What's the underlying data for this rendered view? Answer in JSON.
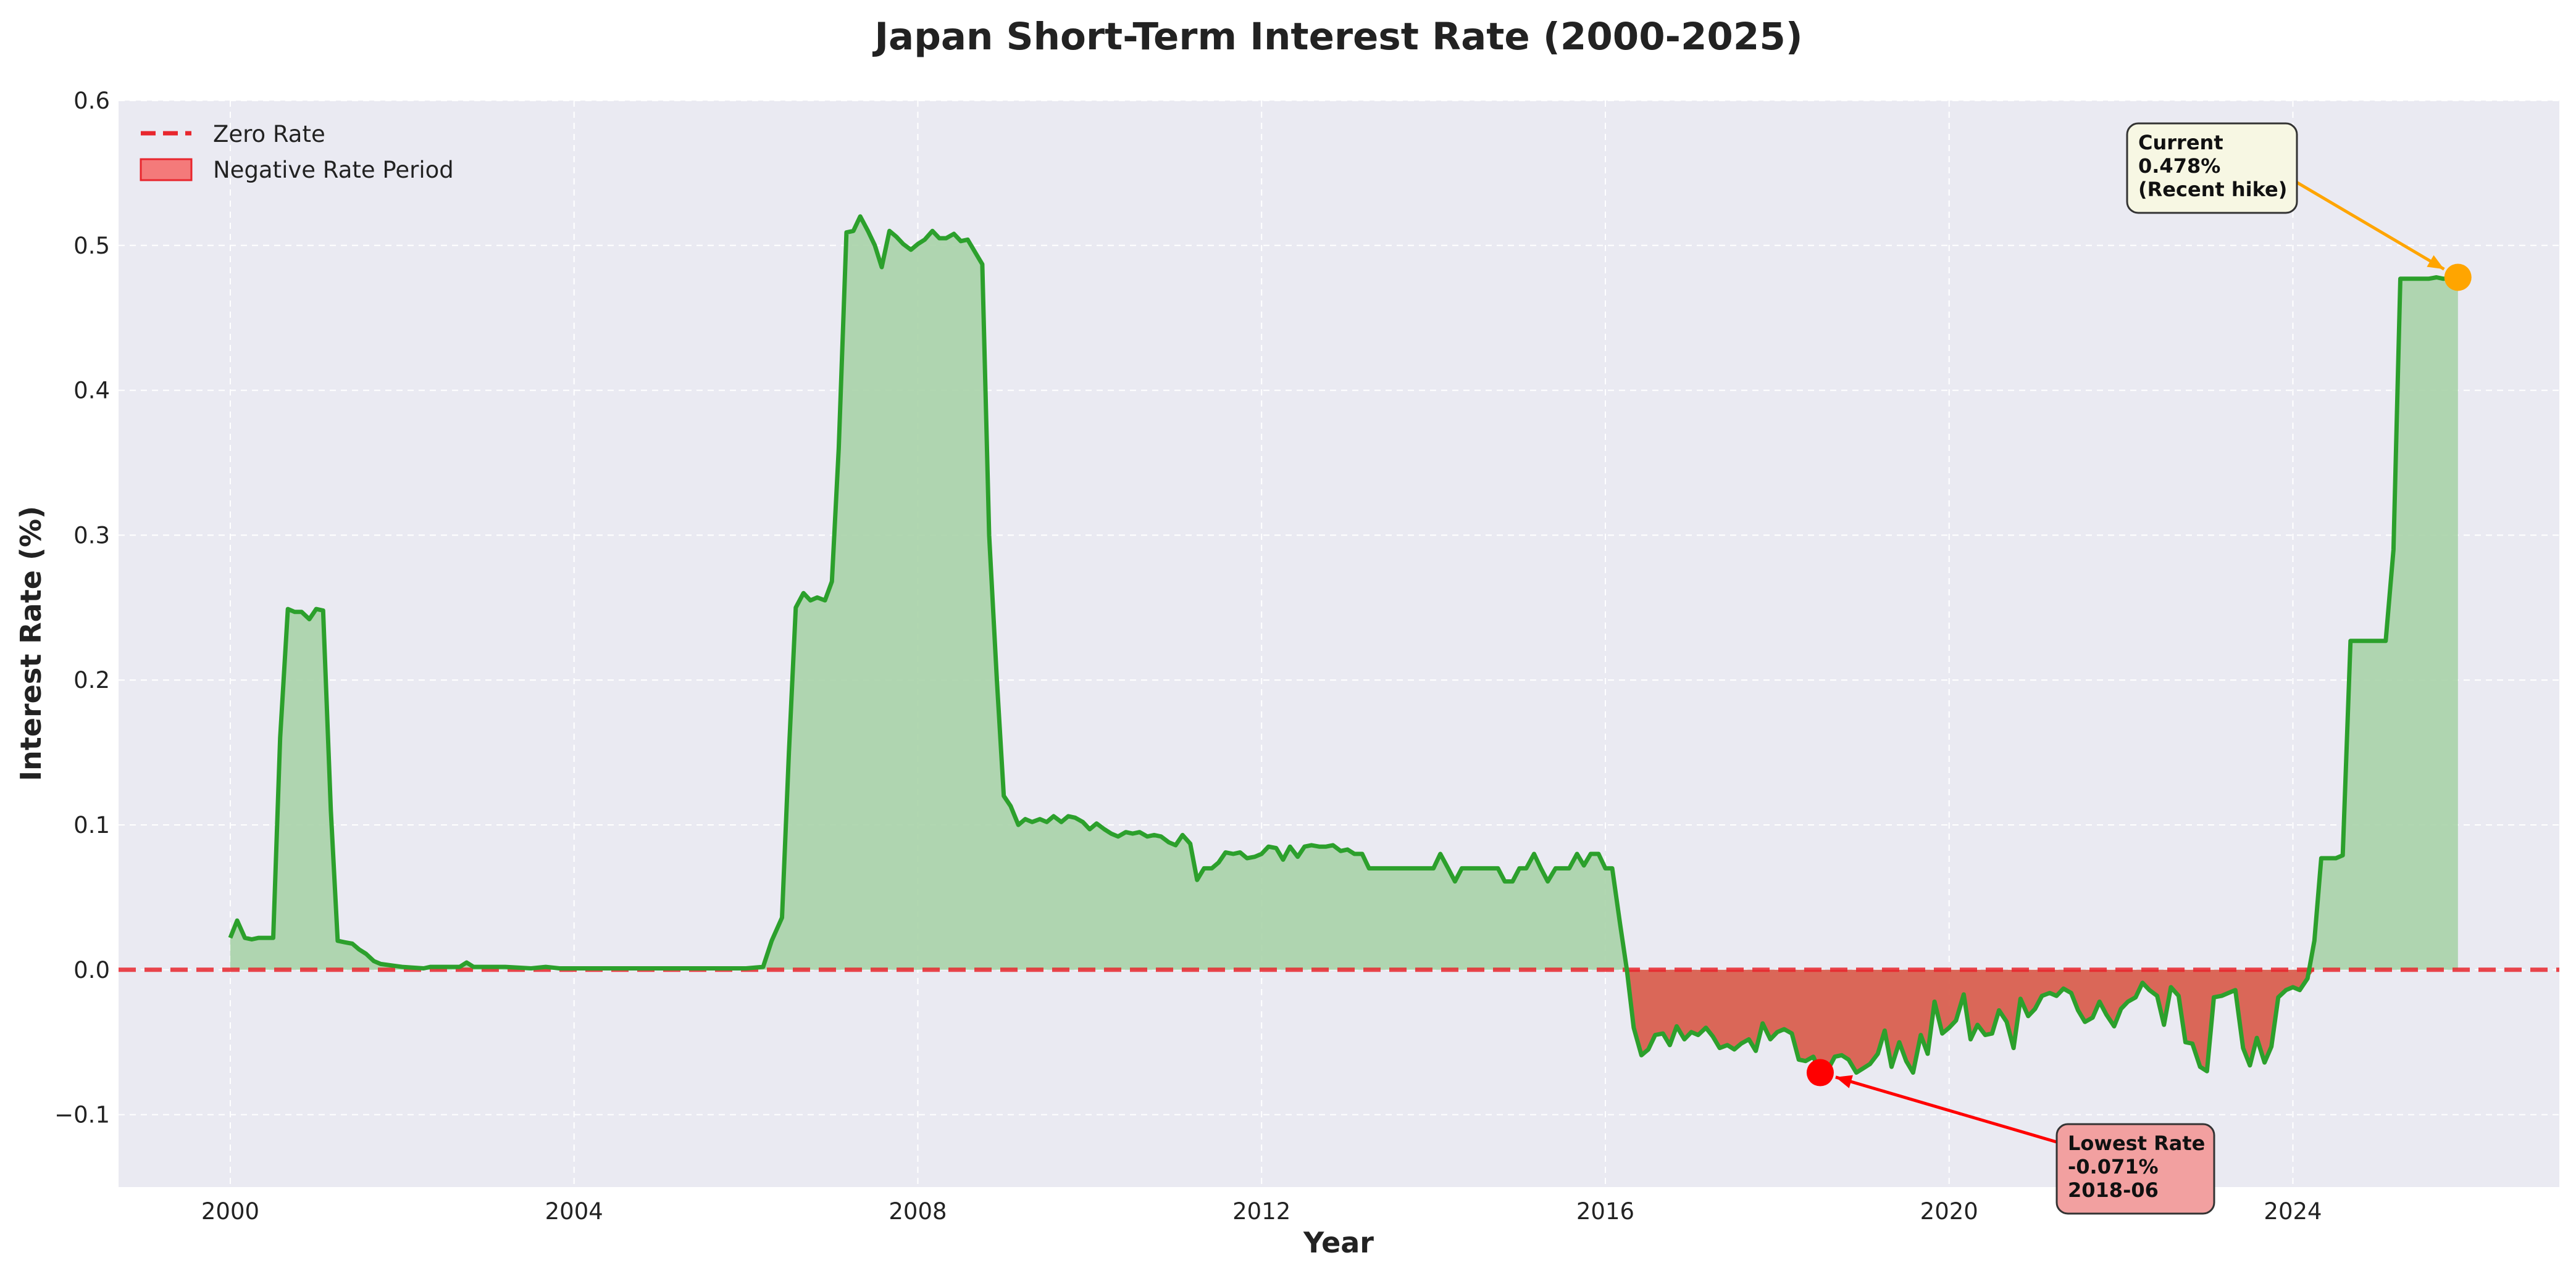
{
  "chart_data": {
    "type": "area",
    "title": "Japan Short-Term Interest Rate (2000-2025)",
    "xlabel": "Year",
    "ylabel": "Interest Rate (%)",
    "xlim": [
      1998.7,
      2027.1
    ],
    "ylim": [
      -0.15,
      0.6
    ],
    "x_ticks": [
      2000,
      2004,
      2008,
      2012,
      2016,
      2020,
      2024
    ],
    "x_tick_labels": [
      "2000",
      "2004",
      "2008",
      "2012",
      "2016",
      "2020",
      "2024"
    ],
    "y_ticks": [
      -0.1,
      0.0,
      0.1,
      0.2,
      0.3,
      0.4,
      0.5,
      0.6
    ],
    "y_tick_labels": [
      "−0.1",
      "0.0",
      "0.1",
      "0.2",
      "0.3",
      "0.4",
      "0.5",
      "0.6"
    ],
    "grid": true,
    "legend": {
      "position": "upper-left",
      "items": [
        {
          "label": "Zero Rate",
          "style": "dashed-line",
          "color": "#e8262d"
        },
        {
          "label": "Negative Rate Period",
          "style": "patch",
          "color": "#f47a7a"
        }
      ]
    },
    "colors": {
      "line": "#2ca02c",
      "positive_fill": "#a9d3a9",
      "negative_fill": "#d9604f",
      "zero_line": "#e8262d",
      "plot_bg": "#eaeaf2",
      "current_marker": "#ffa500",
      "lowest_marker": "#ff0000"
    },
    "series": [
      {
        "name": "Interest Rate",
        "points": [
          [
            2000.0,
            0.022
          ],
          [
            2000.08,
            0.034
          ],
          [
            2000.17,
            0.022
          ],
          [
            2000.25,
            0.021
          ],
          [
            2000.33,
            0.022
          ],
          [
            2000.5,
            0.022
          ],
          [
            2000.58,
            0.16
          ],
          [
            2000.67,
            0.249
          ],
          [
            2000.75,
            0.247
          ],
          [
            2000.83,
            0.247
          ],
          [
            2000.92,
            0.242
          ],
          [
            2001.0,
            0.249
          ],
          [
            2001.08,
            0.248
          ],
          [
            2001.17,
            0.11
          ],
          [
            2001.25,
            0.02
          ],
          [
            2001.33,
            0.019
          ],
          [
            2001.42,
            0.018
          ],
          [
            2001.5,
            0.014
          ],
          [
            2001.58,
            0.011
          ],
          [
            2001.67,
            0.006
          ],
          [
            2001.75,
            0.004
          ],
          [
            2002.0,
            0.002
          ],
          [
            2002.25,
            0.001
          ],
          [
            2002.33,
            0.002
          ],
          [
            2002.5,
            0.002
          ],
          [
            2002.67,
            0.002
          ],
          [
            2002.75,
            0.005
          ],
          [
            2002.83,
            0.002
          ],
          [
            2003.0,
            0.002
          ],
          [
            2003.2,
            0.002
          ],
          [
            2003.5,
            0.001
          ],
          [
            2003.67,
            0.002
          ],
          [
            2003.83,
            0.001
          ],
          [
            2004.0,
            0.001
          ],
          [
            2004.5,
            0.001
          ],
          [
            2005.0,
            0.001
          ],
          [
            2005.5,
            0.001
          ],
          [
            2006.0,
            0.001
          ],
          [
            2006.2,
            0.002
          ],
          [
            2006.3,
            0.02
          ],
          [
            2006.42,
            0.036
          ],
          [
            2006.5,
            0.15
          ],
          [
            2006.58,
            0.25
          ],
          [
            2006.67,
            0.26
          ],
          [
            2006.75,
            0.255
          ],
          [
            2006.83,
            0.257
          ],
          [
            2006.92,
            0.255
          ],
          [
            2007.0,
            0.268
          ],
          [
            2007.08,
            0.36
          ],
          [
            2007.17,
            0.509
          ],
          [
            2007.25,
            0.51
          ],
          [
            2007.33,
            0.52
          ],
          [
            2007.42,
            0.51
          ],
          [
            2007.5,
            0.5
          ],
          [
            2007.58,
            0.485
          ],
          [
            2007.67,
            0.51
          ],
          [
            2007.75,
            0.506
          ],
          [
            2007.83,
            0.501
          ],
          [
            2007.92,
            0.497
          ],
          [
            2008.0,
            0.501
          ],
          [
            2008.08,
            0.504
          ],
          [
            2008.17,
            0.51
          ],
          [
            2008.25,
            0.505
          ],
          [
            2008.33,
            0.505
          ],
          [
            2008.42,
            0.508
          ],
          [
            2008.5,
            0.503
          ],
          [
            2008.58,
            0.504
          ],
          [
            2008.67,
            0.495
          ],
          [
            2008.75,
            0.487
          ],
          [
            2008.83,
            0.3
          ],
          [
            2008.92,
            0.2
          ],
          [
            2009.0,
            0.12
          ],
          [
            2009.08,
            0.113
          ],
          [
            2009.17,
            0.1
          ],
          [
            2009.25,
            0.104
          ],
          [
            2009.33,
            0.102
          ],
          [
            2009.42,
            0.104
          ],
          [
            2009.5,
            0.102
          ],
          [
            2009.58,
            0.106
          ],
          [
            2009.67,
            0.102
          ],
          [
            2009.75,
            0.106
          ],
          [
            2009.83,
            0.105
          ],
          [
            2009.92,
            0.102
          ],
          [
            2010.0,
            0.097
          ],
          [
            2010.08,
            0.101
          ],
          [
            2010.17,
            0.097
          ],
          [
            2010.25,
            0.094
          ],
          [
            2010.33,
            0.092
          ],
          [
            2010.42,
            0.095
          ],
          [
            2010.5,
            0.094
          ],
          [
            2010.58,
            0.095
          ],
          [
            2010.67,
            0.092
          ],
          [
            2010.75,
            0.093
          ],
          [
            2010.83,
            0.092
          ],
          [
            2010.92,
            0.088
          ],
          [
            2011.0,
            0.086
          ],
          [
            2011.08,
            0.093
          ],
          [
            2011.17,
            0.087
          ],
          [
            2011.25,
            0.062
          ],
          [
            2011.33,
            0.07
          ],
          [
            2011.42,
            0.07
          ],
          [
            2011.5,
            0.074
          ],
          [
            2011.58,
            0.081
          ],
          [
            2011.67,
            0.08
          ],
          [
            2011.75,
            0.081
          ],
          [
            2011.83,
            0.077
          ],
          [
            2011.92,
            0.078
          ],
          [
            2012.0,
            0.08
          ],
          [
            2012.08,
            0.085
          ],
          [
            2012.17,
            0.084
          ],
          [
            2012.25,
            0.076
          ],
          [
            2012.33,
            0.085
          ],
          [
            2012.42,
            0.078
          ],
          [
            2012.5,
            0.085
          ],
          [
            2012.58,
            0.086
          ],
          [
            2012.67,
            0.085
          ],
          [
            2012.75,
            0.085
          ],
          [
            2012.83,
            0.086
          ],
          [
            2012.92,
            0.082
          ],
          [
            2013.0,
            0.083
          ],
          [
            2013.08,
            0.08
          ],
          [
            2013.17,
            0.08
          ],
          [
            2013.25,
            0.07
          ],
          [
            2013.5,
            0.07
          ],
          [
            2013.75,
            0.07
          ],
          [
            2014.0,
            0.07
          ],
          [
            2014.08,
            0.08
          ],
          [
            2014.17,
            0.07
          ],
          [
            2014.25,
            0.061
          ],
          [
            2014.33,
            0.07
          ],
          [
            2014.5,
            0.07
          ],
          [
            2014.75,
            0.07
          ],
          [
            2014.83,
            0.061
          ],
          [
            2014.92,
            0.061
          ],
          [
            2015.0,
            0.07
          ],
          [
            2015.08,
            0.07
          ],
          [
            2015.17,
            0.08
          ],
          [
            2015.25,
            0.07
          ],
          [
            2015.33,
            0.061
          ],
          [
            2015.42,
            0.07
          ],
          [
            2015.5,
            0.07
          ],
          [
            2015.58,
            0.07
          ],
          [
            2015.67,
            0.08
          ],
          [
            2015.75,
            0.072
          ],
          [
            2015.83,
            0.08
          ],
          [
            2015.92,
            0.08
          ],
          [
            2016.0,
            0.07
          ],
          [
            2016.08,
            0.07
          ],
          [
            2016.17,
            0.032
          ],
          [
            2016.25,
            0.0
          ],
          [
            2016.33,
            -0.04
          ],
          [
            2016.42,
            -0.059
          ],
          [
            2016.5,
            -0.055
          ],
          [
            2016.58,
            -0.045
          ],
          [
            2016.67,
            -0.044
          ],
          [
            2016.75,
            -0.052
          ],
          [
            2016.83,
            -0.039
          ],
          [
            2016.92,
            -0.048
          ],
          [
            2017.0,
            -0.043
          ],
          [
            2017.08,
            -0.045
          ],
          [
            2017.17,
            -0.04
          ],
          [
            2017.25,
            -0.046
          ],
          [
            2017.33,
            -0.054
          ],
          [
            2017.42,
            -0.052
          ],
          [
            2017.5,
            -0.055
          ],
          [
            2017.58,
            -0.051
          ],
          [
            2017.67,
            -0.048
          ],
          [
            2017.75,
            -0.056
          ],
          [
            2017.83,
            -0.037
          ],
          [
            2017.92,
            -0.048
          ],
          [
            2018.0,
            -0.043
          ],
          [
            2018.08,
            -0.041
          ],
          [
            2018.17,
            -0.044
          ],
          [
            2018.25,
            -0.062
          ],
          [
            2018.33,
            -0.063
          ],
          [
            2018.42,
            -0.06
          ],
          [
            2018.5,
            -0.071
          ],
          [
            2018.58,
            -0.07
          ],
          [
            2018.67,
            -0.06
          ],
          [
            2018.75,
            -0.059
          ],
          [
            2018.83,
            -0.062
          ],
          [
            2018.92,
            -0.071
          ],
          [
            2019.0,
            -0.068
          ],
          [
            2019.08,
            -0.065
          ],
          [
            2019.17,
            -0.058
          ],
          [
            2019.25,
            -0.042
          ],
          [
            2019.33,
            -0.067
          ],
          [
            2019.42,
            -0.05
          ],
          [
            2019.5,
            -0.063
          ],
          [
            2019.58,
            -0.071
          ],
          [
            2019.67,
            -0.045
          ],
          [
            2019.75,
            -0.058
          ],
          [
            2019.83,
            -0.022
          ],
          [
            2019.92,
            -0.044
          ],
          [
            2020.0,
            -0.04
          ],
          [
            2020.08,
            -0.035
          ],
          [
            2020.17,
            -0.017
          ],
          [
            2020.25,
            -0.048
          ],
          [
            2020.33,
            -0.038
          ],
          [
            2020.42,
            -0.045
          ],
          [
            2020.5,
            -0.044
          ],
          [
            2020.58,
            -0.028
          ],
          [
            2020.67,
            -0.036
          ],
          [
            2020.75,
            -0.054
          ],
          [
            2020.83,
            -0.02
          ],
          [
            2020.92,
            -0.032
          ],
          [
            2021.0,
            -0.027
          ],
          [
            2021.08,
            -0.018
          ],
          [
            2021.17,
            -0.016
          ],
          [
            2021.25,
            -0.018
          ],
          [
            2021.33,
            -0.013
          ],
          [
            2021.42,
            -0.016
          ],
          [
            2021.5,
            -0.028
          ],
          [
            2021.58,
            -0.036
          ],
          [
            2021.67,
            -0.033
          ],
          [
            2021.75,
            -0.022
          ],
          [
            2021.83,
            -0.031
          ],
          [
            2021.92,
            -0.039
          ],
          [
            2022.0,
            -0.027
          ],
          [
            2022.08,
            -0.022
          ],
          [
            2022.17,
            -0.019
          ],
          [
            2022.25,
            -0.009
          ],
          [
            2022.33,
            -0.014
          ],
          [
            2022.42,
            -0.018
          ],
          [
            2022.5,
            -0.038
          ],
          [
            2022.58,
            -0.012
          ],
          [
            2022.67,
            -0.018
          ],
          [
            2022.75,
            -0.05
          ],
          [
            2022.83,
            -0.051
          ],
          [
            2022.92,
            -0.067
          ],
          [
            2023.0,
            -0.07
          ],
          [
            2023.08,
            -0.019
          ],
          [
            2023.17,
            -0.018
          ],
          [
            2023.25,
            -0.016
          ],
          [
            2023.33,
            -0.014
          ],
          [
            2023.42,
            -0.054
          ],
          [
            2023.5,
            -0.066
          ],
          [
            2023.58,
            -0.047
          ],
          [
            2023.67,
            -0.064
          ],
          [
            2023.75,
            -0.053
          ],
          [
            2023.83,
            -0.019
          ],
          [
            2023.92,
            -0.014
          ],
          [
            2024.0,
            -0.012
          ],
          [
            2024.08,
            -0.014
          ],
          [
            2024.17,
            -0.006
          ],
          [
            2024.25,
            0.02
          ],
          [
            2024.33,
            0.077
          ],
          [
            2024.5,
            0.077
          ],
          [
            2024.58,
            0.079
          ],
          [
            2024.67,
            0.227
          ],
          [
            2024.83,
            0.227
          ],
          [
            2024.92,
            0.227
          ],
          [
            2025.08,
            0.227
          ],
          [
            2025.17,
            0.29
          ],
          [
            2025.25,
            0.477
          ],
          [
            2025.42,
            0.477
          ],
          [
            2025.58,
            0.477
          ],
          [
            2025.67,
            0.478
          ],
          [
            2025.75,
            0.477
          ],
          [
            2025.92,
            0.478
          ]
        ]
      }
    ],
    "annotations": [
      {
        "lines": [
          "Current",
          "0.478%",
          "(Recent hike)"
        ],
        "x": 2025.92,
        "y": 0.478,
        "box_color": "#f7f7e3",
        "arrow_color": "#ffa500"
      },
      {
        "lines": [
          "Lowest Rate",
          "-0.071%",
          "2018-06"
        ],
        "x": 2018.5,
        "y": -0.071,
        "box_color": "#f2a0a0",
        "arrow_color": "#ff0000"
      }
    ]
  }
}
